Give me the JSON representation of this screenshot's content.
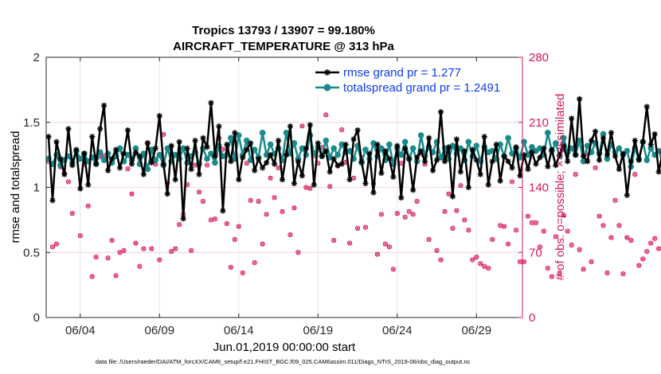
{
  "colors": {
    "rmse": "#000000",
    "spread": "#1a8a8a",
    "obs": "#d6165a",
    "legend_text": "#0b3cf0",
    "grid": "#e6e6e6"
  },
  "chart_data": {
    "type": "line",
    "title": [
      "Tropics 13793 / 13907 = 99.180%",
      "AIRCRAFT_TEMPERATURE @ 313 hPa"
    ],
    "xlabel": "Jun.01,2019 00:00:00 start",
    "ylabel": "rmse and totalspread",
    "ylabel_right": "# of obs: o=possible; ×=assimilated",
    "footer": "data file: /Users/raeder/DAI/ATM_forcXX/CAM6_setup/f.e21.FHIST_BGC.f09_025.CAM6assim.011/Diags_NTrS_2019-06/obs_diag_output.nc",
    "xlim": [
      1.85,
      31.9
    ],
    "ylim": [
      0,
      2
    ],
    "ylim_right": [
      0,
      280
    ],
    "xticks": [
      4,
      9,
      14,
      19,
      24,
      29
    ],
    "xtick_labels": [
      "06/04",
      "06/09",
      "06/14",
      "06/19",
      "06/24",
      "06/29"
    ],
    "yticks": [
      0,
      0.5,
      1,
      1.5,
      2
    ],
    "ytick_labels": [
      "0",
      "0.5",
      "1",
      "1.5",
      "2"
    ],
    "yticks_right": [
      0,
      70,
      140,
      210,
      280
    ],
    "ytick_labels_right": [
      "0",
      "70",
      "140",
      "210",
      "280"
    ],
    "x_start": 2,
    "x_step": 0.25,
    "series": [
      {
        "name": "rmse grand pr = 1.277",
        "axis": "left",
        "marker": "asterisk",
        "values": [
          1.39,
          0.9,
          1.35,
          1.22,
          1.1,
          1.45,
          1.17,
          1.29,
          0.99,
          1.26,
          1.02,
          1.39,
          1.18,
          1.45,
          1.63,
          1.13,
          1.22,
          1.29,
          1.15,
          1.26,
          1.44,
          1.18,
          1.27,
          1.24,
          1.1,
          1.34,
          1.19,
          1.3,
          1.55,
          1.18,
          0.95,
          1.32,
          1.06,
          1.35,
          0.76,
          1.3,
          1.14,
          1.36,
          1.1,
          1.38,
          1.31,
          1.65,
          1.24,
          1.47,
          0.82,
          1.33,
          1.2,
          1.42,
          1.06,
          1.23,
          1.29,
          1.34,
          1.13,
          1.22,
          1.15,
          1.19,
          1.25,
          1.18,
          1.36,
          1.06,
          1.25,
          1.47,
          1.03,
          1.2,
          1.09,
          1.3,
          1.48,
          1.02,
          1.34,
          1.24,
          1.28,
          1.12,
          1.22,
          1.17,
          1.18,
          1.33,
          1.06,
          1.37,
          1.44,
          1.2,
          1.03,
          1.26,
          0.96,
          1.33,
          1.11,
          1.28,
          1.22,
          1.08,
          1.32,
          0.92,
          1.3,
          1.22,
          0.98,
          1.23,
          1.28,
          1.2,
          1.38,
          1.13,
          1.21,
          1.58,
          1.2,
          1.31,
          0.93,
          1.37,
          1.12,
          1.28,
          1.0,
          1.29,
          1.21,
          1.1,
          1.39,
          1.02,
          1.2,
          1.33,
          1.05,
          1.24,
          1.2,
          1.15,
          1.31,
          1.09,
          1.25,
          1.14,
          1.27,
          1.18,
          1.23,
          1.3,
          1.16,
          1.29,
          1.17,
          1.25,
          1.32,
          1.2,
          1.53,
          1.25,
          1.68,
          1.24,
          1.2,
          1.36,
          1.43,
          1.21,
          1.38,
          1.25,
          1.42,
          1.24,
          1.14,
          1.26,
          0.94,
          1.2,
          1.36,
          1.21,
          1.35,
          1.62,
          1.33,
          1.41,
          1.12,
          1.27,
          1.35,
          1.02,
          1.04,
          1.32,
          1.12,
          1.25,
          1.31,
          1.28,
          1.18,
          1.22
        ]
      },
      {
        "name": "totalspread grand pr = 1.2491",
        "axis": "left",
        "marker": "circle",
        "values": [
          1.22,
          1.18,
          1.25,
          1.17,
          1.21,
          1.24,
          1.19,
          1.28,
          1.22,
          1.26,
          1.2,
          1.23,
          1.18,
          1.27,
          1.21,
          1.26,
          1.19,
          1.24,
          1.3,
          1.2,
          1.25,
          1.21,
          1.3,
          1.18,
          1.26,
          1.14,
          1.29,
          1.21,
          1.25,
          1.17,
          1.3,
          1.2,
          1.25,
          1.22,
          1.3,
          1.19,
          1.24,
          1.27,
          1.18,
          1.3,
          1.22,
          1.26,
          1.19,
          1.32,
          1.24,
          1.25,
          1.38,
          1.22,
          1.4,
          1.25,
          1.36,
          1.21,
          1.29,
          1.23,
          1.42,
          1.25,
          1.33,
          1.26,
          1.3,
          1.21,
          1.42,
          1.26,
          1.34,
          1.22,
          1.3,
          1.25,
          1.4,
          1.26,
          1.31,
          1.24,
          1.36,
          1.23,
          1.3,
          1.25,
          1.33,
          1.27,
          1.28,
          1.22,
          1.32,
          1.19,
          1.29,
          1.22,
          1.34,
          1.24,
          1.3,
          1.21,
          1.33,
          1.18,
          1.3,
          1.25,
          1.35,
          1.22,
          1.3,
          1.2,
          1.4,
          1.24,
          1.31,
          1.27,
          1.35,
          1.23,
          1.3,
          1.22,
          1.32,
          1.26,
          1.3,
          1.21,
          1.35,
          1.24,
          1.32,
          1.2,
          1.31,
          1.27,
          1.28,
          1.22,
          1.33,
          1.24,
          1.38,
          1.26,
          1.3,
          1.23,
          1.35,
          1.25,
          1.31,
          1.28,
          1.3,
          1.25,
          1.42,
          1.28,
          1.34,
          1.24,
          1.38,
          1.27,
          1.3,
          1.25,
          1.36,
          1.2,
          1.32,
          1.27,
          1.34,
          1.26,
          1.41,
          1.22,
          1.33,
          1.27,
          1.3,
          1.25,
          1.28,
          1.16,
          1.3,
          1.22,
          1.35,
          1.21,
          1.3,
          1.25,
          1.28,
          1.19,
          1.31,
          1.24,
          1.27,
          1.22,
          1.3,
          1.28,
          1.25,
          1.22
        ]
      },
      {
        "name": "obs possible",
        "axis": "right",
        "marker": "o",
        "values": [
          168,
          76,
          79,
          162,
          155,
          146,
          112,
          178,
          88,
          165,
          120,
          44,
          65,
          173,
          174,
          64,
          83,
          45,
          70,
          72,
          160,
          133,
          80,
          55,
          74,
          188,
          74,
          165,
          62,
          197,
          145,
          71,
          74,
          100,
          111,
          143,
          72,
          164,
          135,
          125,
          164,
          105,
          106,
          193,
          181,
          101,
          54,
          84,
          98,
          48,
          166,
          126,
          59,
          125,
          79,
          111,
          150,
          129,
          161,
          114,
          178,
          89,
          118,
          70,
          206,
          140,
          139,
          174,
          166,
          183,
          218,
          141,
          83,
          163,
          202,
          167,
          80,
          150,
          96,
          172,
          97,
          172,
          144,
          68,
          111,
          79,
          76,
          52,
          112,
          166,
          108,
          114,
          111,
          125,
          176,
          165,
          84,
          178,
          72,
          62,
          114,
          133,
          96,
          115,
          142,
          105,
          94,
          62,
          65,
          58,
          55,
          53,
          84,
          170,
          99,
          98,
          79,
          146,
          94,
          60,
          60,
          109,
          102,
          102,
          76,
          93,
          53,
          44,
          87,
          48,
          110,
          93,
          78,
          154,
          73,
          52,
          176,
          60,
          161,
          109,
          99,
          48,
          86,
          126,
          99,
          47,
          86,
          83,
          154,
          56,
          63,
          71,
          80,
          85,
          74,
          180,
          122,
          108,
          165,
          0
        ]
      },
      {
        "name": "obs assimilated",
        "axis": "right",
        "marker": "x",
        "values": [
          168,
          76,
          79,
          162,
          155,
          146,
          112,
          178,
          88,
          165,
          120,
          44,
          65,
          173,
          174,
          64,
          83,
          45,
          70,
          72,
          160,
          133,
          80,
          55,
          74,
          188,
          74,
          165,
          62,
          197,
          145,
          71,
          74,
          100,
          111,
          143,
          72,
          164,
          135,
          125,
          164,
          105,
          106,
          193,
          181,
          101,
          54,
          84,
          98,
          48,
          166,
          126,
          59,
          125,
          79,
          111,
          150,
          129,
          161,
          114,
          178,
          89,
          118,
          70,
          206,
          140,
          139,
          174,
          166,
          183,
          218,
          141,
          83,
          163,
          202,
          167,
          80,
          150,
          96,
          172,
          97,
          172,
          144,
          68,
          111,
          79,
          76,
          52,
          112,
          166,
          108,
          114,
          111,
          125,
          176,
          165,
          84,
          178,
          72,
          62,
          114,
          133,
          96,
          115,
          142,
          105,
          94,
          62,
          65,
          58,
          55,
          53,
          84,
          170,
          99,
          98,
          79,
          146,
          94,
          60,
          60,
          109,
          102,
          102,
          76,
          93,
          53,
          44,
          87,
          48,
          110,
          93,
          78,
          154,
          73,
          52,
          176,
          60,
          161,
          109,
          99,
          48,
          86,
          126,
          99,
          47,
          86,
          83,
          154,
          56,
          63,
          71,
          80,
          85,
          74,
          180,
          122,
          108,
          165,
          0
        ]
      }
    ],
    "legend_position": "top-right"
  }
}
